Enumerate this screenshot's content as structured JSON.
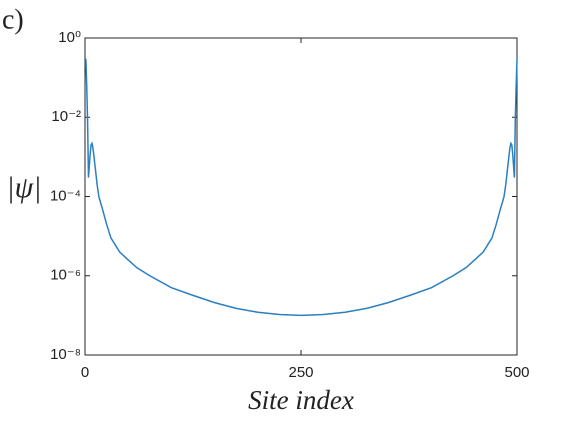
{
  "chart_data": {
    "type": "line",
    "panel_label": "c)",
    "xlabel": "Site index",
    "ylabel": "|ψ|",
    "log_y": true,
    "grid": false,
    "xlim": [
      0,
      500
    ],
    "xticks": [
      0,
      250,
      500
    ],
    "ylim": [
      1e-08,
      1
    ],
    "yticks": [
      {
        "value": 1e-08,
        "label": "10⁻⁸"
      },
      {
        "value": 1e-06,
        "label": "10⁻⁶"
      },
      {
        "value": 0.0001,
        "label": "10⁻⁴"
      },
      {
        "value": 0.01,
        "label": "10⁻²"
      },
      {
        "value": 1,
        "label": "10⁰"
      }
    ],
    "x": [
      1,
      2,
      3,
      4,
      5,
      6,
      7,
      8,
      9,
      10,
      12,
      14,
      16,
      18,
      20,
      25,
      30,
      40,
      50,
      60,
      75,
      100,
      125,
      150,
      175,
      200,
      225,
      250,
      251,
      276,
      301,
      326,
      351,
      376,
      401,
      426,
      441,
      451,
      461,
      471,
      476,
      481,
      483,
      485,
      487,
      489,
      491,
      492,
      493,
      494,
      495,
      496,
      497,
      498,
      499,
      500
    ],
    "series": [
      {
        "color": "#2a7fc1",
        "values": [
          0.3,
          0.06,
          0.008,
          0.0003,
          0.0006,
          0.0012,
          0.002,
          0.0022,
          0.0018,
          0.0012,
          0.0005,
          0.0002,
          0.0001,
          7e-05,
          5e-05,
          2e-05,
          9e-06,
          4e-06,
          2.5e-06,
          1.6e-06,
          1e-06,
          5e-07,
          3.2e-07,
          2.1e-07,
          1.5e-07,
          1.2e-07,
          1.05e-07,
          1e-07,
          1e-07,
          1.05e-07,
          1.2e-07,
          1.5e-07,
          2.1e-07,
          3.2e-07,
          5e-07,
          1e-06,
          1.6e-06,
          2.5e-06,
          4e-06,
          9e-06,
          2e-05,
          5e-05,
          7e-05,
          0.0001,
          0.0002,
          0.0005,
          0.0012,
          0.0018,
          0.0022,
          0.002,
          0.0012,
          0.0006,
          0.0003,
          0.008,
          0.06,
          0.3
        ]
      }
    ]
  }
}
